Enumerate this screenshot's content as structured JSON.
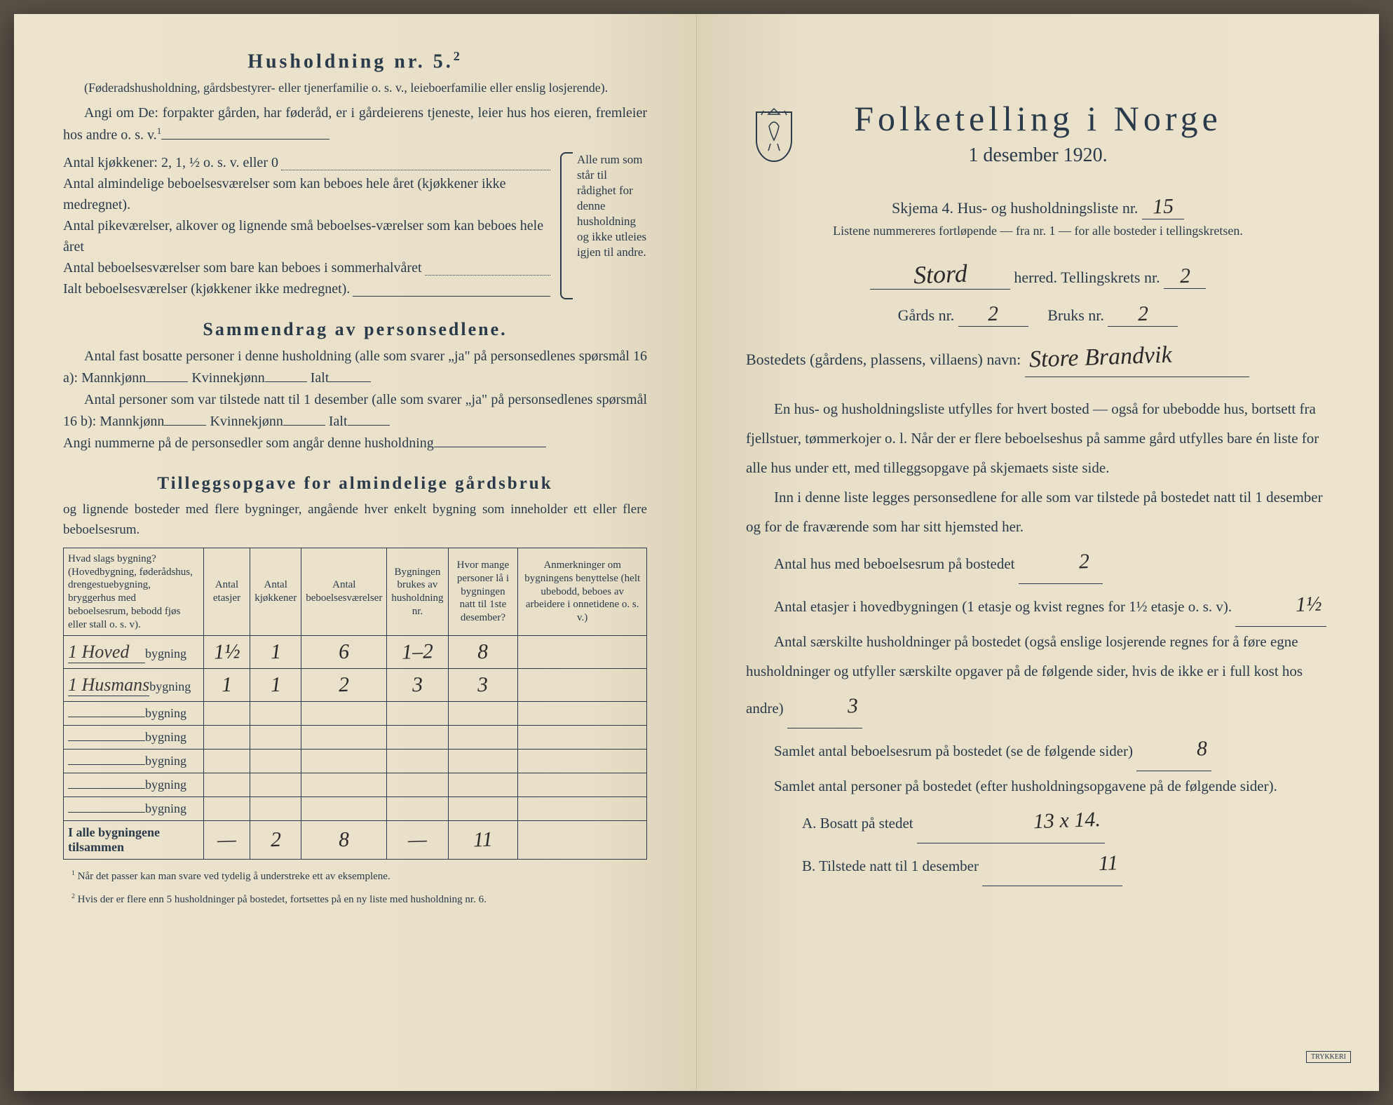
{
  "left": {
    "hh5_title": "Husholdning nr. 5.",
    "hh5_sup": "2",
    "hh5_sub": "(Føderadshusholdning, gårdsbestyrer- eller tjenerfamilie o. s. v., leieboerfamilie eller enslig losjerende).",
    "hh5_line1": "Angi om De:  forpakter gården, har føderåd, er i gårdeierens tjeneste, leier hus hos eieren, fremleier hos andre o. s. v.",
    "kjok_label": "Antal kjøkkener: 2, 1, ½ o. s. v. eller 0",
    "rooms": [
      "Antal almindelige beboelsesværelser som kan beboes hele året (kjøkkener ikke medregnet).",
      "Antal pikeværelser, alkover og lignende små beboelses-værelser som kan beboes hele året",
      "Antal beboelsesværelser som bare kan beboes i sommerhalvåret"
    ],
    "ialt_label": "Ialt beboelsesværelser  (kjøkkener ikke medregnet).",
    "bracket_note": "Alle rum som står til rådighet for denne husholdning og ikke utleies igjen til andre.",
    "sammen_title": "Sammendrag av personsedlene.",
    "sammen_l1a": "Antal fast bosatte personer i denne husholdning (alle som svarer „ja\" på personsedlenes spørsmål 16 a): Mannkjønn",
    "sammen_l1b": "Kvinnekjønn",
    "sammen_l1c": "Ialt",
    "sammen_l2a": "Antal personer som var tilstede natt til 1 desember (alle som svarer „ja\" på personsedlenes spørsmål 16 b): Mannkjønn",
    "sammen_l2b": "Kvinnekjønn",
    "sammen_l2c": "Ialt",
    "sammen_l3": "Angi nummerne på de personsedler som angår denne husholdning",
    "tillegg_title": "Tilleggsopgave for almindelige gårdsbruk",
    "tillegg_sub": "og lignende bosteder med flere bygninger, angående hver enkelt bygning som inneholder ett eller flere beboelsesrum.",
    "table": {
      "headers": [
        "Hvad slags bygning?\n(Hovedbygning, føderådshus, drengestuebygning, bryggerhus med beboelsesrum, bebodd fjøs eller stall o. s. v).",
        "Antal etasjer",
        "Antal kjøkkener",
        "Antal beboelsesværelser",
        "Bygningen brukes av husholdning nr.",
        "Hvor mange personer lå i bygningen natt til 1ste desember?",
        "Anmerkninger om bygningens benyttelse (helt ubebodd, beboes av arbeidere i onnetidene o. s. v.)"
      ],
      "rows": [
        {
          "pre": "1 Hoved",
          "suf": "bygning",
          "c": [
            "1½",
            "1",
            "6",
            "1–2",
            "8",
            ""
          ]
        },
        {
          "pre": "1 Husmans",
          "suf": "bygning",
          "c": [
            "1",
            "1",
            "2",
            "3",
            "3",
            ""
          ]
        },
        {
          "pre": "",
          "suf": "bygning",
          "c": [
            "",
            "",
            "",
            "",
            "",
            ""
          ]
        },
        {
          "pre": "",
          "suf": "bygning",
          "c": [
            "",
            "",
            "",
            "",
            "",
            ""
          ]
        },
        {
          "pre": "",
          "suf": "bygning",
          "c": [
            "",
            "",
            "",
            "",
            "",
            ""
          ]
        },
        {
          "pre": "",
          "suf": "bygning",
          "c": [
            "",
            "",
            "",
            "",
            "",
            ""
          ]
        },
        {
          "pre": "",
          "suf": "bygning",
          "c": [
            "",
            "",
            "",
            "",
            "",
            ""
          ]
        }
      ],
      "total_label": "I alle bygningene tilsammen",
      "total": [
        "—",
        "2",
        "8",
        "—",
        "11",
        ""
      ]
    },
    "fn1": "Når det passer kan man svare ved tydelig å understreke ett av eksemplene.",
    "fn2": "Hvis der er flere enn 5 husholdninger på bostedet, fortsettes på en ny liste med husholdning nr. 6."
  },
  "right": {
    "title": "Folketelling i Norge",
    "subtitle": "1 desember 1920.",
    "skjema": "Skjema 4.   Hus- og husholdningsliste nr.",
    "skjema_val": "15",
    "listnote": "Listene nummereres fortløpende — fra nr. 1 — for alle bosteder i tellingskretsen.",
    "herred_val": "Stord",
    "herred_suf": "herred.   Tellingskrets nr.",
    "krets_val": "2",
    "gards_label": "Gårds nr.",
    "gards_val": "2",
    "bruks_label": "Bruks nr.",
    "bruks_val": "2",
    "bosted_label": "Bostedets (gårdens, plassens, villaens) navn:",
    "bosted_val": "Store Brandvik",
    "para1": "En hus- og husholdningsliste utfylles for hvert bosted — også for ubebodde hus, bortsett fra fjellstuer, tømmerkojer o. l.  Når der er flere beboelseshus på samme gård utfylles bare én liste for alle hus under ett, med tilleggsopgave på skjemaets siste side.",
    "para2": "Inn i denne liste legges personsedlene for alle som var tilstede på bostedet natt til 1 desember og for de fraværende som har sitt hjemsted her.",
    "q1": "Antal hus med beboelsesrum på bostedet",
    "q1_val": "2",
    "q2a": "Antal etasjer i hovedbygningen (1 etasje og kvist regnes for 1½ etasje o. s. v).",
    "q2_val": "1½",
    "q3": "Antal særskilte husholdninger på bostedet (også enslige losjerende regnes for å føre egne husholdninger og utfyller særskilte opgaver på de følgende sider, hvis de ikke er i full kost hos andre)",
    "q3_val": "3",
    "q4": "Samlet antal beboelsesrum på bostedet (se de følgende sider)",
    "q4_val": "8",
    "q5": "Samlet antal personer på bostedet (efter husholdningsopgavene på de følgende sider).",
    "qA": "A.  Bosatt på stedet",
    "qA_val": "13 x 14.",
    "qB": "B.  Tilstede natt til 1 desember",
    "qB_val": "11"
  },
  "colors": {
    "paper": "#e8dfc8",
    "ink": "#2a3a4a",
    "handwriting": "#2a2a2a"
  }
}
